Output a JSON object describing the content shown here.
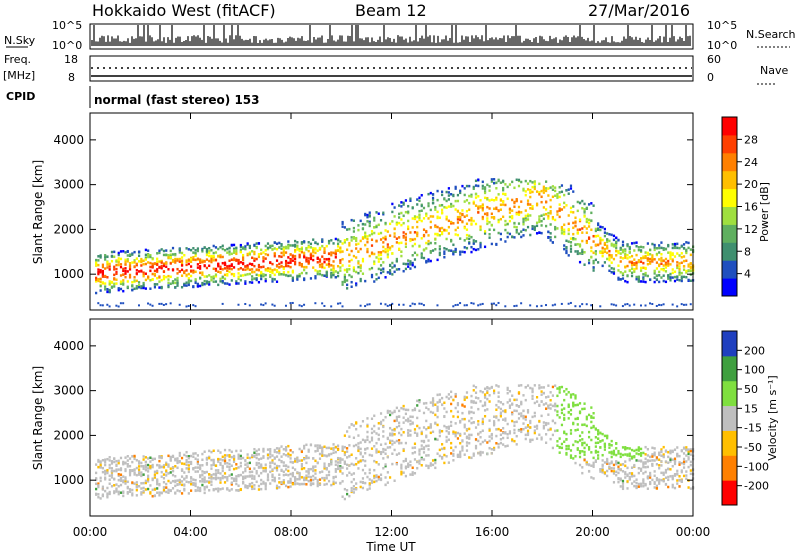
{
  "header": {
    "station": "Hokkaido West (fitACF)",
    "beam": "Beam 12",
    "date": "27/Mar/2016"
  },
  "top_panels": {
    "nsky_label": "N.Sky",
    "nsky_ticks": [
      "10^5",
      "10^0"
    ],
    "nsearch_label": "N.Search",
    "nsearch_ticks": [
      "10^5",
      "10^0"
    ],
    "freq_label": "Freq.",
    "freq_unit": "[MHz]",
    "freq_ticks": [
      "18",
      "8"
    ],
    "nave_label": "Nave",
    "nave_ticks": [
      "60",
      "0"
    ],
    "cpid_label": "CPID",
    "cpid_text": "normal (fast stereo) 153"
  },
  "chart_data": [
    {
      "type": "heatmap",
      "title": "",
      "ylabel": "Slant Range [km]",
      "xlabel": "Time UT",
      "ylim": [
        200,
        4600
      ],
      "x_ticks": [
        "00:00",
        "04:00",
        "08:00",
        "12:00",
        "16:00",
        "20:00",
        "00:00"
      ],
      "y_ticks": [
        "1000",
        "2000",
        "3000",
        "4000"
      ],
      "colorbar_label": "Power [dB]",
      "colorbar_ticks": [
        "4",
        "8",
        "12",
        "16",
        "20",
        "24",
        "28"
      ],
      "colorbar_range": [
        0,
        30
      ],
      "colorbar_colors": [
        "#0000ff",
        "#1f4fbf",
        "#3f8f6f",
        "#5faf5f",
        "#9fdf3f",
        "#ffff00",
        "#ffbf00",
        "#ff8000",
        "#ff4000",
        "#ff0000"
      ],
      "bands": [
        {
          "t0": 0.5,
          "t1": 9.5,
          "r0": 800,
          "r1": 1600,
          "level": "high"
        },
        {
          "t0": 9.5,
          "t1": 13,
          "r0": 1200,
          "r1": 2000,
          "level": "mid"
        },
        {
          "t0": 13,
          "t1": 19,
          "r0": 1800,
          "r1": 3100,
          "level": "mid"
        },
        {
          "t0": 21,
          "t1": 24,
          "r0": 900,
          "r1": 1700,
          "level": "mid"
        }
      ]
    },
    {
      "type": "heatmap",
      "title": "",
      "ylabel": "Slant Range [km]",
      "xlabel": "Time UT",
      "ylim": [
        200,
        4600
      ],
      "x_ticks": [
        "00:00",
        "04:00",
        "08:00",
        "12:00",
        "16:00",
        "20:00",
        "00:00"
      ],
      "y_ticks": [
        "1000",
        "2000",
        "3000",
        "4000"
      ],
      "colorbar_label": "Velocity [m s⁻¹]",
      "colorbar_ticks": [
        "200",
        "100",
        "50",
        "15",
        "-15",
        "-50",
        "-100",
        "-200"
      ],
      "colorbar_range": [
        -250,
        250
      ],
      "colorbar_colors": [
        "#ff0000",
        "#ff8000",
        "#ffbf00",
        "#bfbfbf",
        "#7fdf3f",
        "#3f9f3f",
        "#1f3fbf"
      ]
    }
  ],
  "xlabel": "Time UT"
}
